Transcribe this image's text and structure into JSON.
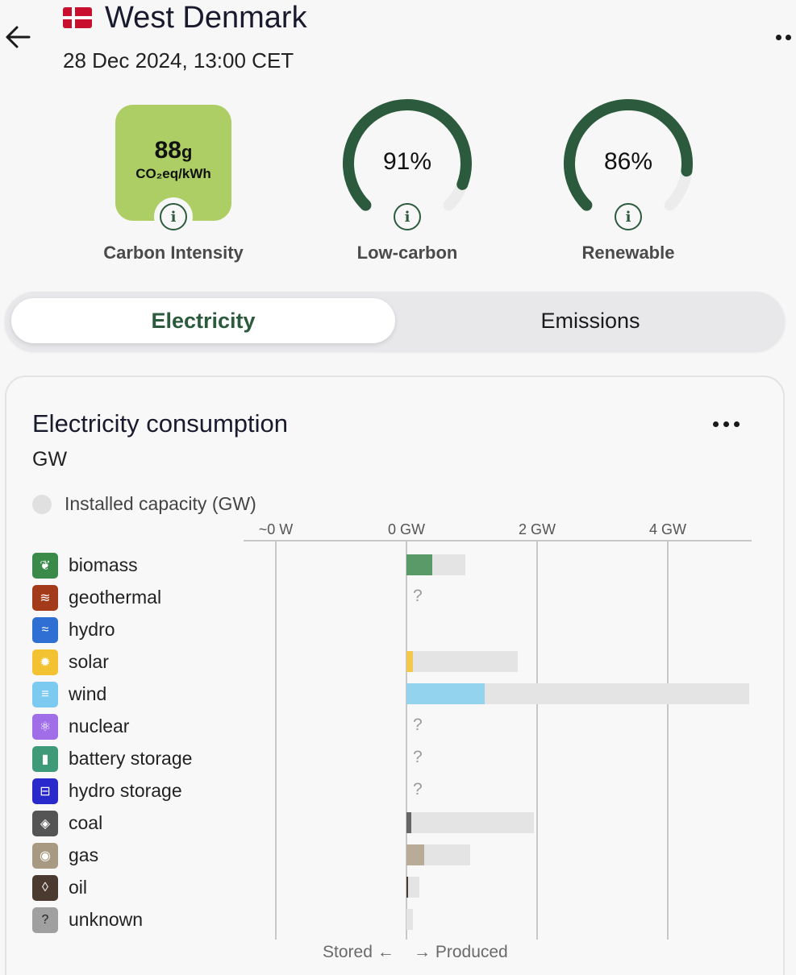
{
  "header": {
    "zone_name": "West Denmark",
    "datetime": "28 Dec 2024, 13:00 CET"
  },
  "metrics": {
    "carbon_intensity": {
      "value": "88",
      "unit_suffix": "g",
      "unit": "CO₂eq/kWh",
      "label": "Carbon Intensity",
      "color": "#acce64"
    },
    "low_carbon": {
      "value_text": "91%",
      "fraction": 0.91,
      "label": "Low-carbon"
    },
    "renewable": {
      "value_text": "86%",
      "fraction": 0.86,
      "label": "Renewable"
    }
  },
  "tabs": {
    "electricity": "Electricity",
    "emissions": "Emissions"
  },
  "card": {
    "title": "Electricity consumption",
    "unit": "GW",
    "legend_label": "Installed capacity (GW)",
    "footer_stored": "Stored",
    "footer_produced": "Produced"
  },
  "chart_data": {
    "type": "bar",
    "axis_ticks": [
      "~0 W",
      "0 GW",
      "2 GW",
      "4 GW"
    ],
    "x_unit": "GW",
    "xlim": [
      -2,
      5.2
    ],
    "categories": [
      "biomass",
      "geothermal",
      "hydro",
      "solar",
      "wind",
      "nuclear",
      "battery storage",
      "hydro storage",
      "coal",
      "gas",
      "oil",
      "unknown"
    ],
    "series": [
      {
        "values": [
          0.4,
          null,
          0,
          0.1,
          1.2,
          null,
          null,
          null,
          0.08,
          0.27,
          0.01,
          0
        ]
      },
      {
        "name": "Installed capacity (GW)",
        "values": [
          0.9,
          null,
          0,
          1.7,
          5.25,
          null,
          null,
          null,
          1.95,
          0.98,
          0.2,
          0.1
        ]
      }
    ],
    "unknown_marker": "?",
    "colors": [
      "#5a9a68",
      null,
      "#2f6fd4",
      "#f2c94c",
      "#93d3ee",
      "#9f7aea",
      "#4fa88a",
      "#3333cc",
      "#666666",
      "#b8ac98",
      "#4a3a30",
      "#9e9e9e"
    ]
  },
  "sources": [
    {
      "name": "biomass",
      "icon": "sprout-icon",
      "glyph": "❦",
      "color": "#3a8a4a"
    },
    {
      "name": "geothermal",
      "icon": "heat-waves-icon",
      "glyph": "≋",
      "color": "#a33a1a"
    },
    {
      "name": "hydro",
      "icon": "water-waves-icon",
      "glyph": "≈",
      "color": "#2f6fd4"
    },
    {
      "name": "solar",
      "icon": "sun-icon",
      "glyph": "✹",
      "color": "#f2c230"
    },
    {
      "name": "wind",
      "icon": "wind-icon",
      "glyph": "≡",
      "color": "#7ccaf0"
    },
    {
      "name": "nuclear",
      "icon": "atom-icon",
      "glyph": "⚛",
      "color": "#a06ee8"
    },
    {
      "name": "battery storage",
      "icon": "battery-icon",
      "glyph": "▮",
      "color": "#3f9a7a"
    },
    {
      "name": "hydro storage",
      "icon": "reservoir-icon",
      "glyph": "⊟",
      "color": "#2a2acc"
    },
    {
      "name": "coal",
      "icon": "coal-icon",
      "glyph": "◈",
      "color": "#555555"
    },
    {
      "name": "gas",
      "icon": "flame-icon",
      "glyph": "◉",
      "color": "#a89a82"
    },
    {
      "name": "oil",
      "icon": "oil-drop-icon",
      "glyph": "◊",
      "color": "#4a3a30"
    },
    {
      "name": "unknown",
      "icon": "question-icon",
      "glyph": "?",
      "color": "#a0a0a0"
    }
  ]
}
